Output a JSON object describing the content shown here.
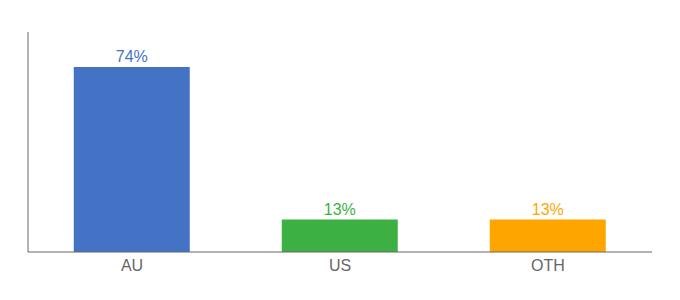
{
  "chart_data": {
    "type": "bar",
    "categories": [
      "AU",
      "US",
      "OTH"
    ],
    "values": [
      74,
      13,
      13
    ],
    "value_labels": [
      "74%",
      "13%",
      "13%"
    ],
    "data_labels": true,
    "colors": [
      "#4472C4",
      "#3CB043",
      "#FFA500"
    ],
    "ylim": [
      0,
      88
    ],
    "grid": false,
    "tick_labels": "x"
  }
}
